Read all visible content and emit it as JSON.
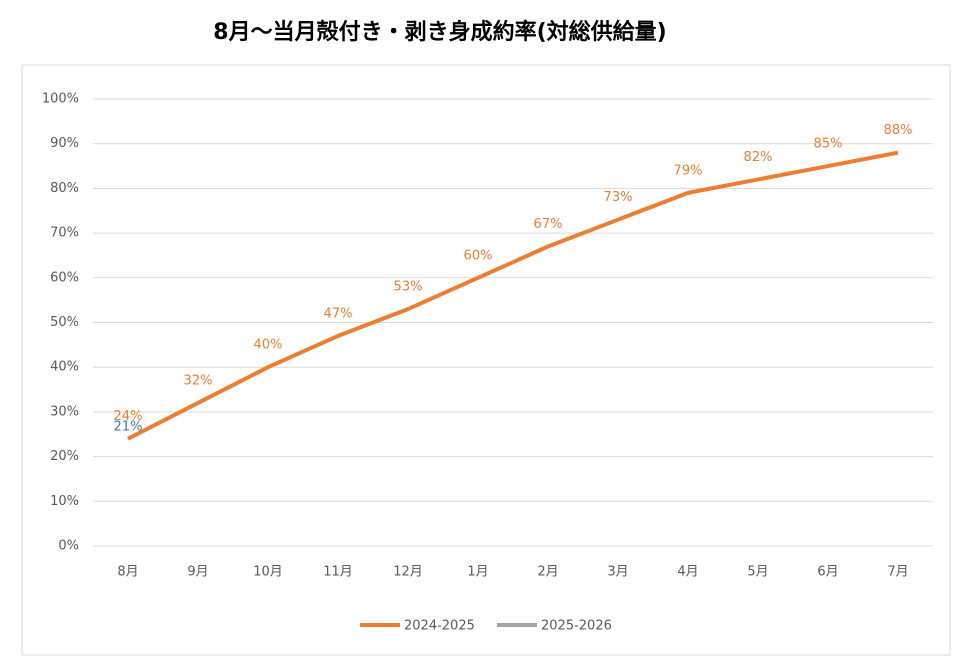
{
  "chart_data": {
    "type": "line",
    "title": "8月～当月殻付き・剥き身成約率(対総供給量)",
    "categories": [
      "8月",
      "9月",
      "10月",
      "11月",
      "12月",
      "1月",
      "2月",
      "3月",
      "4月",
      "5月",
      "6月",
      "7月"
    ],
    "series": [
      {
        "name": "2024-2025",
        "color": "#ed7d31",
        "label_color": "#ed7d31",
        "values": [
          24,
          32,
          40,
          47,
          53,
          60,
          67,
          73,
          79,
          82,
          85,
          88
        ],
        "value_labels": [
          "24%",
          "32%",
          "40%",
          "47%",
          "53%",
          "60%",
          "67%",
          "73%",
          "79%",
          "82%",
          "85%",
          "88%"
        ]
      },
      {
        "name": "2025-2026",
        "color": "#a5a5a5",
        "label_color": "#4472c4",
        "values": [
          21,
          null,
          null,
          null,
          null,
          null,
          null,
          null,
          null,
          null,
          null,
          null
        ],
        "value_labels": [
          "21%",
          null,
          null,
          null,
          null,
          null,
          null,
          null,
          null,
          null,
          null,
          null
        ]
      }
    ],
    "ylim": [
      0,
      100
    ],
    "yticks": [
      {
        "value": 0,
        "label": "0%"
      },
      {
        "value": 10,
        "label": "10%"
      },
      {
        "value": 20,
        "label": "20%"
      },
      {
        "value": 30,
        "label": "30%"
      },
      {
        "value": 40,
        "label": "40%"
      },
      {
        "value": 50,
        "label": "50%"
      },
      {
        "value": 60,
        "label": "60%"
      },
      {
        "value": 70,
        "label": "70%"
      },
      {
        "value": 80,
        "label": "80%"
      },
      {
        "value": 90,
        "label": "90%"
      },
      {
        "value": 100,
        "label": "100%"
      }
    ],
    "grid": true,
    "legend": "bottom"
  }
}
